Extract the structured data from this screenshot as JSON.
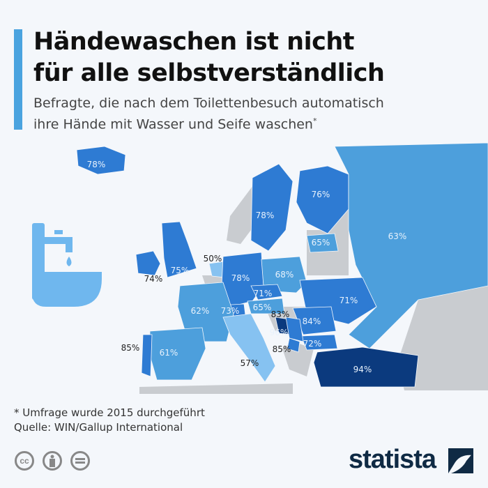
{
  "header": {
    "title_line1": "Händewaschen ist nicht",
    "title_line2": "für alle selbstverständlich",
    "subtitle_line1": "Befragte, die nach dem Toilettenbesuch automatisch",
    "subtitle_line2": "ihre Hände mit Wasser und Seife waschen",
    "subtitle_mark": "*"
  },
  "map_data": {
    "metric": "Anteil Befragte (%)",
    "countries": [
      {
        "name": "Island",
        "label": "78%",
        "value": 78
      },
      {
        "name": "Irland",
        "label": "74%",
        "value": 74
      },
      {
        "name": "Vereinigtes Königreich",
        "label": "75%",
        "value": 75
      },
      {
        "name": "Niederlande",
        "label": "50%",
        "value": 50
      },
      {
        "name": "Schweden",
        "label": "78%",
        "value": 78
      },
      {
        "name": "Finnland",
        "label": "76%",
        "value": 76
      },
      {
        "name": "Russland",
        "label": "63%",
        "value": 63
      },
      {
        "name": "Baltikum",
        "label": "65%",
        "value": 65
      },
      {
        "name": "Deutschland",
        "label": "78%",
        "value": 78
      },
      {
        "name": "Polen",
        "label": "68%",
        "value": 68
      },
      {
        "name": "Tschechien",
        "label": "71%",
        "value": 71
      },
      {
        "name": "Österreich",
        "label": "65%",
        "value": 65
      },
      {
        "name": "Schweiz",
        "label": "73%",
        "value": 73
      },
      {
        "name": "Frankreich",
        "label": "62%",
        "value": 62
      },
      {
        "name": "Spanien",
        "label": "61%",
        "value": 61
      },
      {
        "name": "Portugal",
        "label": "85%",
        "value": 85
      },
      {
        "name": "Italien",
        "label": "57%",
        "value": 57
      },
      {
        "name": "Ukraine",
        "label": "71%",
        "value": 71
      },
      {
        "name": "Rumänien",
        "label": "84%",
        "value": 84
      },
      {
        "name": "Bulgarien",
        "label": "72%",
        "value": 72
      },
      {
        "name": "Bosnien",
        "label": "96%",
        "value": 96
      },
      {
        "name": "Serbien",
        "label": "83%",
        "value": 83
      },
      {
        "name": "Mazedonien",
        "label": "85%",
        "value": 85
      },
      {
        "name": "Türkei",
        "label": "94%",
        "value": 94
      }
    ]
  },
  "colors": {
    "accent": "#4aa3df",
    "dark": "#0b3a7e",
    "mid": "#2e7bd3",
    "light": "#4d9fdc",
    "pale": "#86c2f1",
    "noData": "#c9ccd0",
    "brand": "#0f2a44"
  },
  "footer": {
    "note": "* Umfrage wurde 2015 durchgeführt",
    "source": "Quelle: WIN/Gallup International",
    "brand": "statista",
    "cc": "cc"
  }
}
